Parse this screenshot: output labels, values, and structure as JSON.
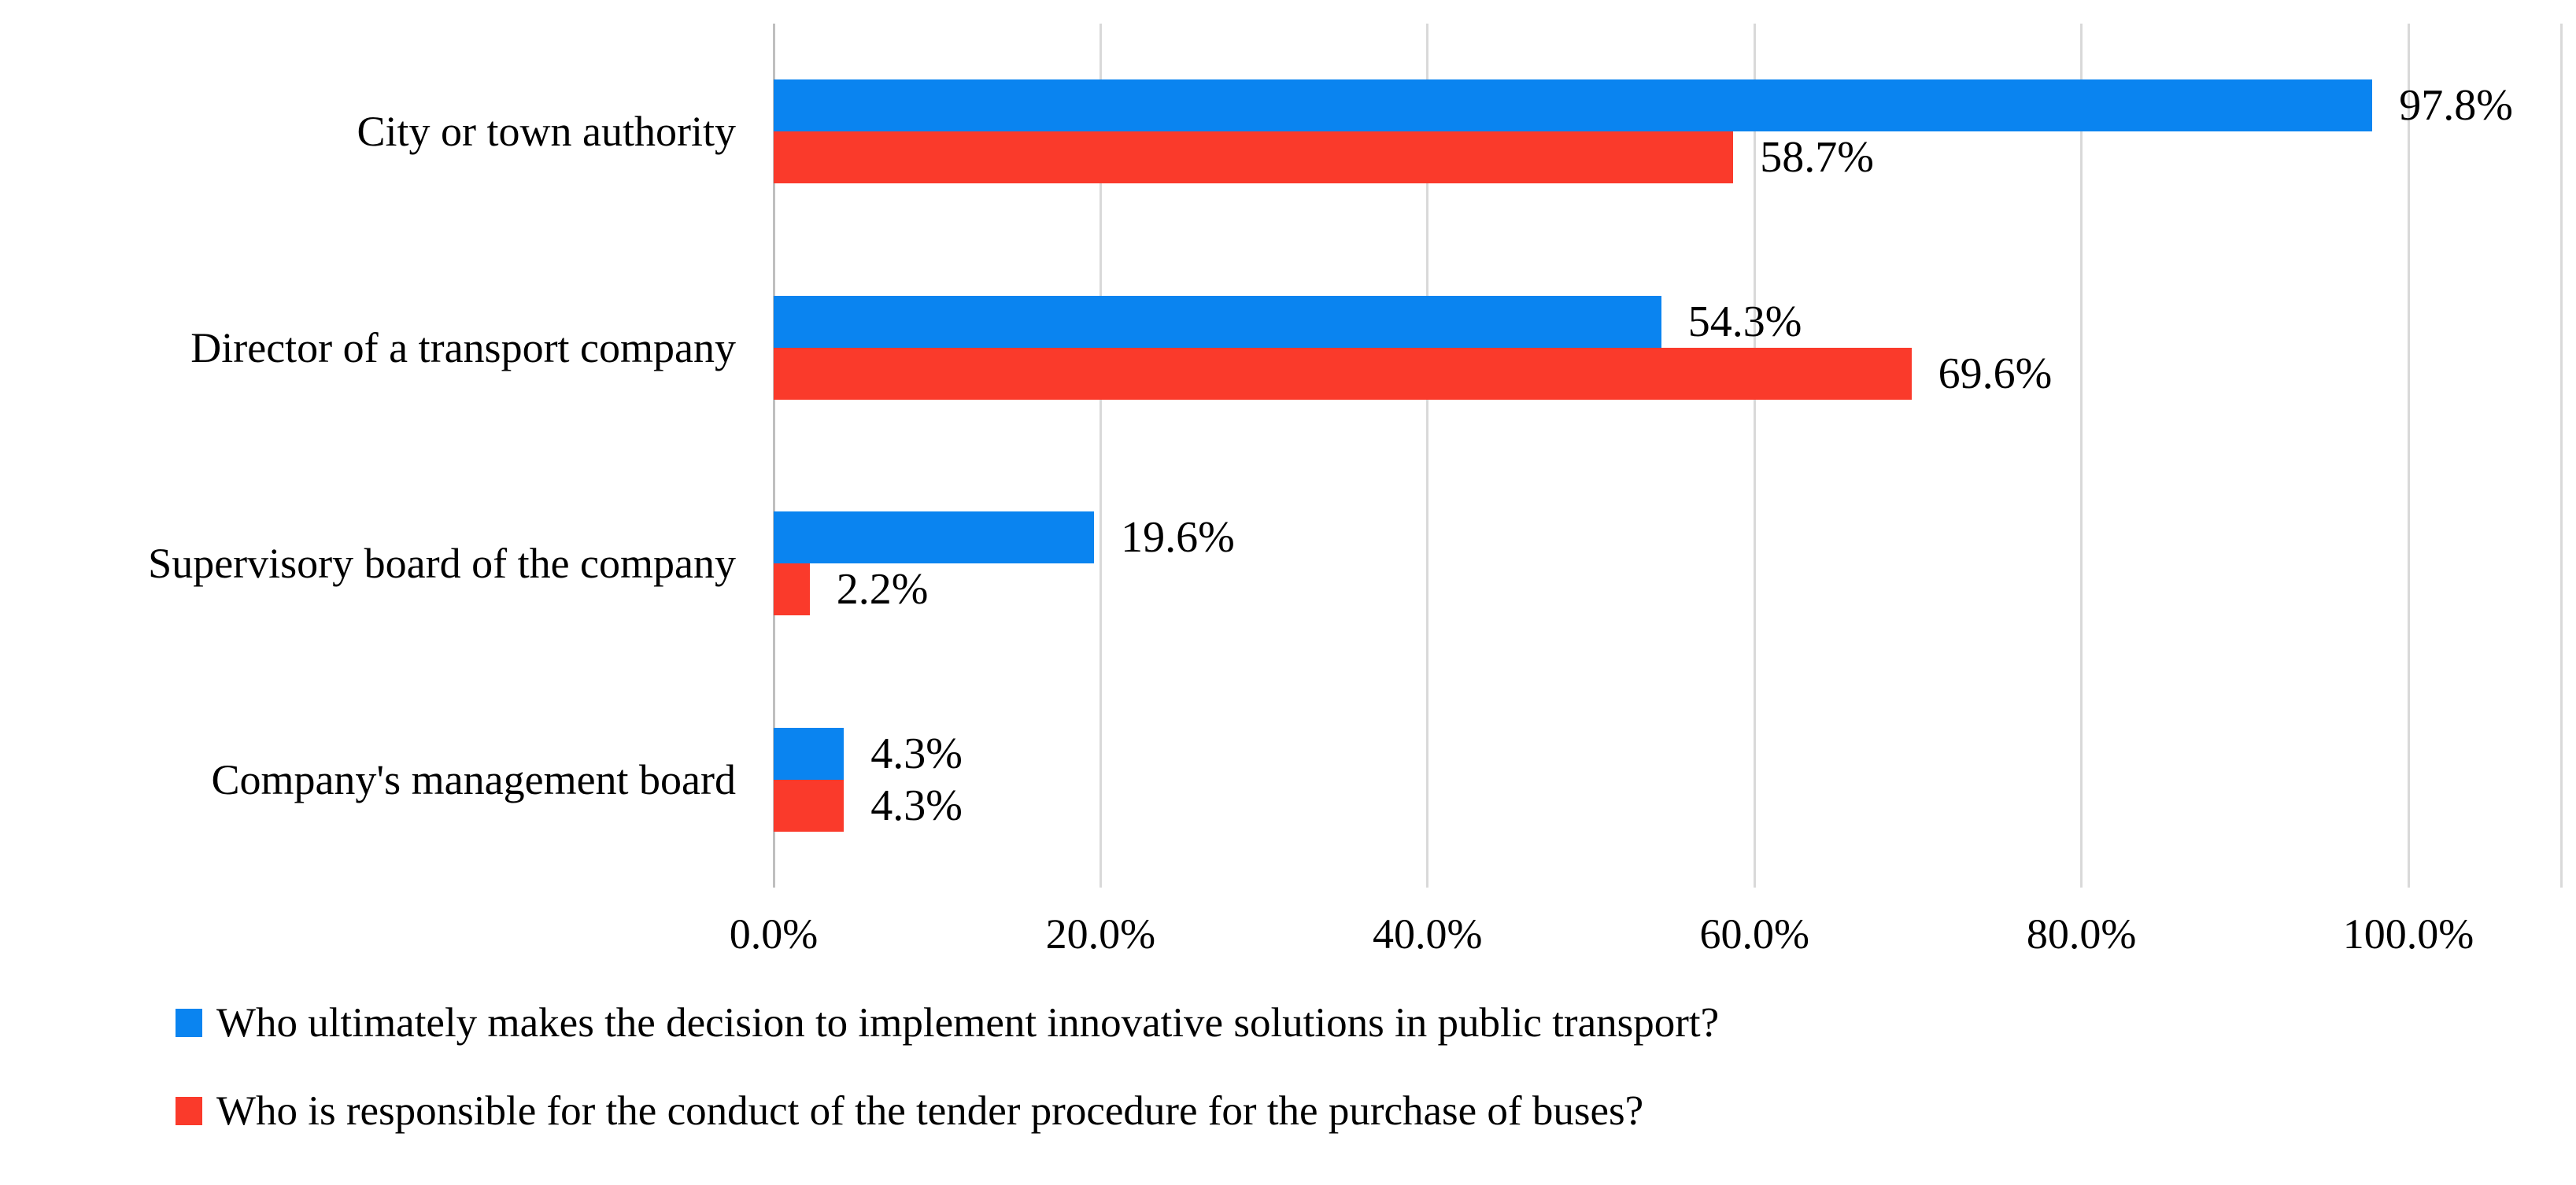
{
  "chart_data": {
    "type": "bar",
    "orientation": "horizontal",
    "title": "",
    "xlabel": "",
    "ylabel": "",
    "categories": [
      "City or town authority",
      "Director of a transport company",
      "Supervisory board of the company",
      "Company's management board"
    ],
    "series": [
      {
        "name": "Who ultimately makes the decision to implement innovative solutions in public transport?",
        "color": "#0A84F0",
        "values": [
          97.8,
          54.3,
          19.6,
          4.3
        ],
        "labels": [
          "97.8%",
          "54.3%",
          "19.6%",
          "4.3%"
        ]
      },
      {
        "name": "Who is responsible for the conduct of the tender procedure for the purchase of buses?",
        "color": "#FA3A2B",
        "values": [
          58.7,
          69.6,
          2.2,
          4.3
        ],
        "labels": [
          "58.7%",
          "69.6%",
          "2.2%",
          "4.3%"
        ]
      }
    ],
    "xlim": [
      0,
      100
    ],
    "x_ticks": [
      0,
      20,
      40,
      60,
      80,
      100
    ],
    "x_tick_labels": [
      "0.0%",
      "20.0%",
      "40.0%",
      "60.0%",
      "80.0%",
      "100.0%"
    ],
    "grid": "vertical",
    "legend_position": "bottom-left"
  },
  "colors": {
    "grid": "#D9D9D9",
    "axis": "#BFBFBF",
    "text": "#000000",
    "background": "#FFFFFF"
  }
}
